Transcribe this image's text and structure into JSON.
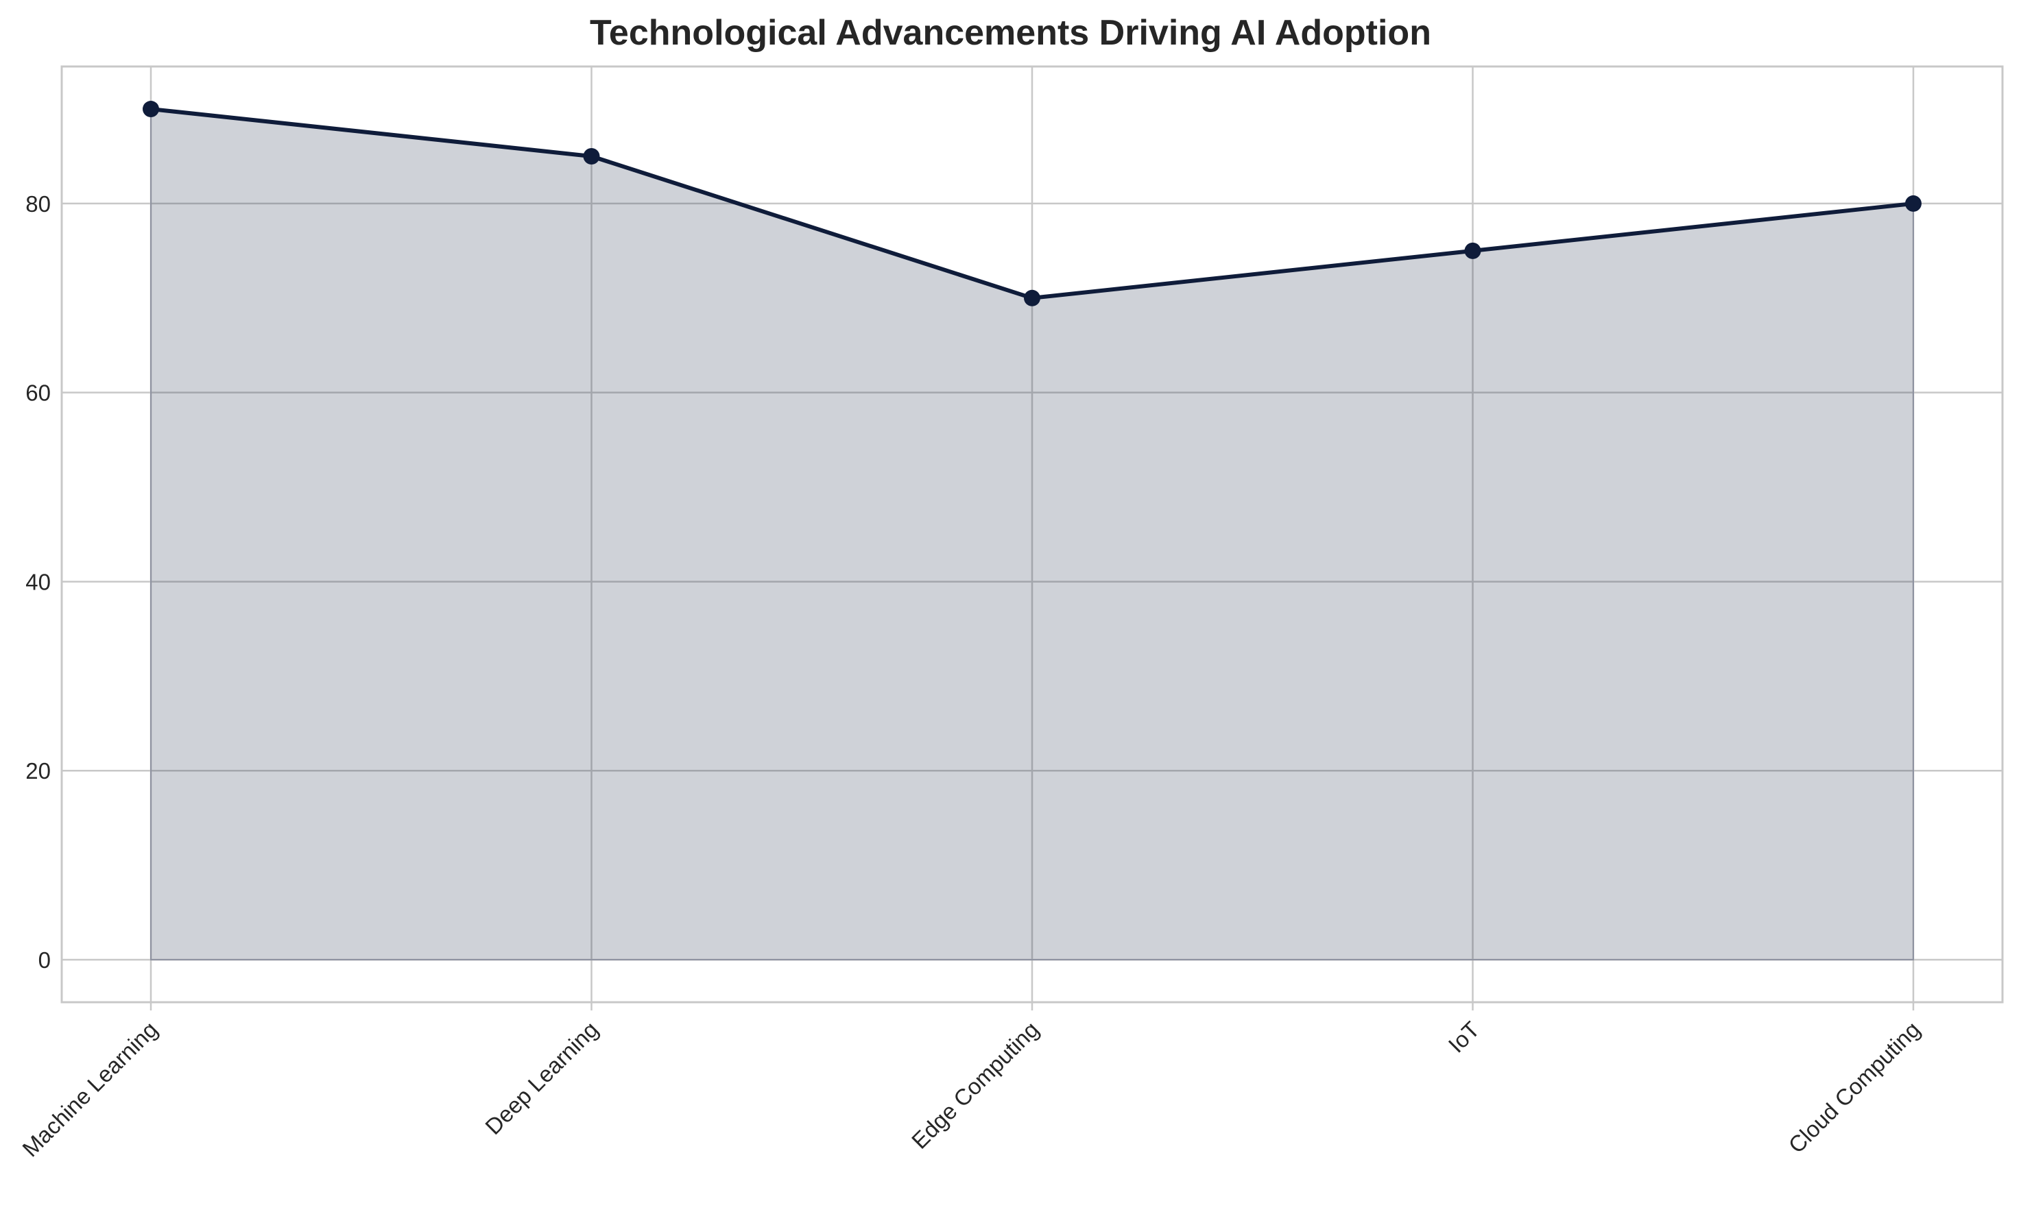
{
  "chart_data": {
    "type": "area",
    "title": "Technological Advancements Driving AI Adoption",
    "xlabel": "",
    "ylabel": "",
    "categories": [
      "Machine Learning",
      "Deep Learning",
      "Edge Computing",
      "IoT",
      "Cloud Computing"
    ],
    "series": [
      {
        "values": [
          90,
          85,
          70,
          75,
          80
        ]
      }
    ],
    "ylim": [
      -4.5,
      94.5
    ],
    "yticks": [
      0,
      20,
      40,
      60,
      80
    ],
    "grid": true,
    "legend": "none",
    "colors": {
      "line": "#0f1c3a",
      "fill": "#cdd0d9",
      "grid": "#c8c8c8",
      "spine": "#c8c8c8"
    }
  }
}
